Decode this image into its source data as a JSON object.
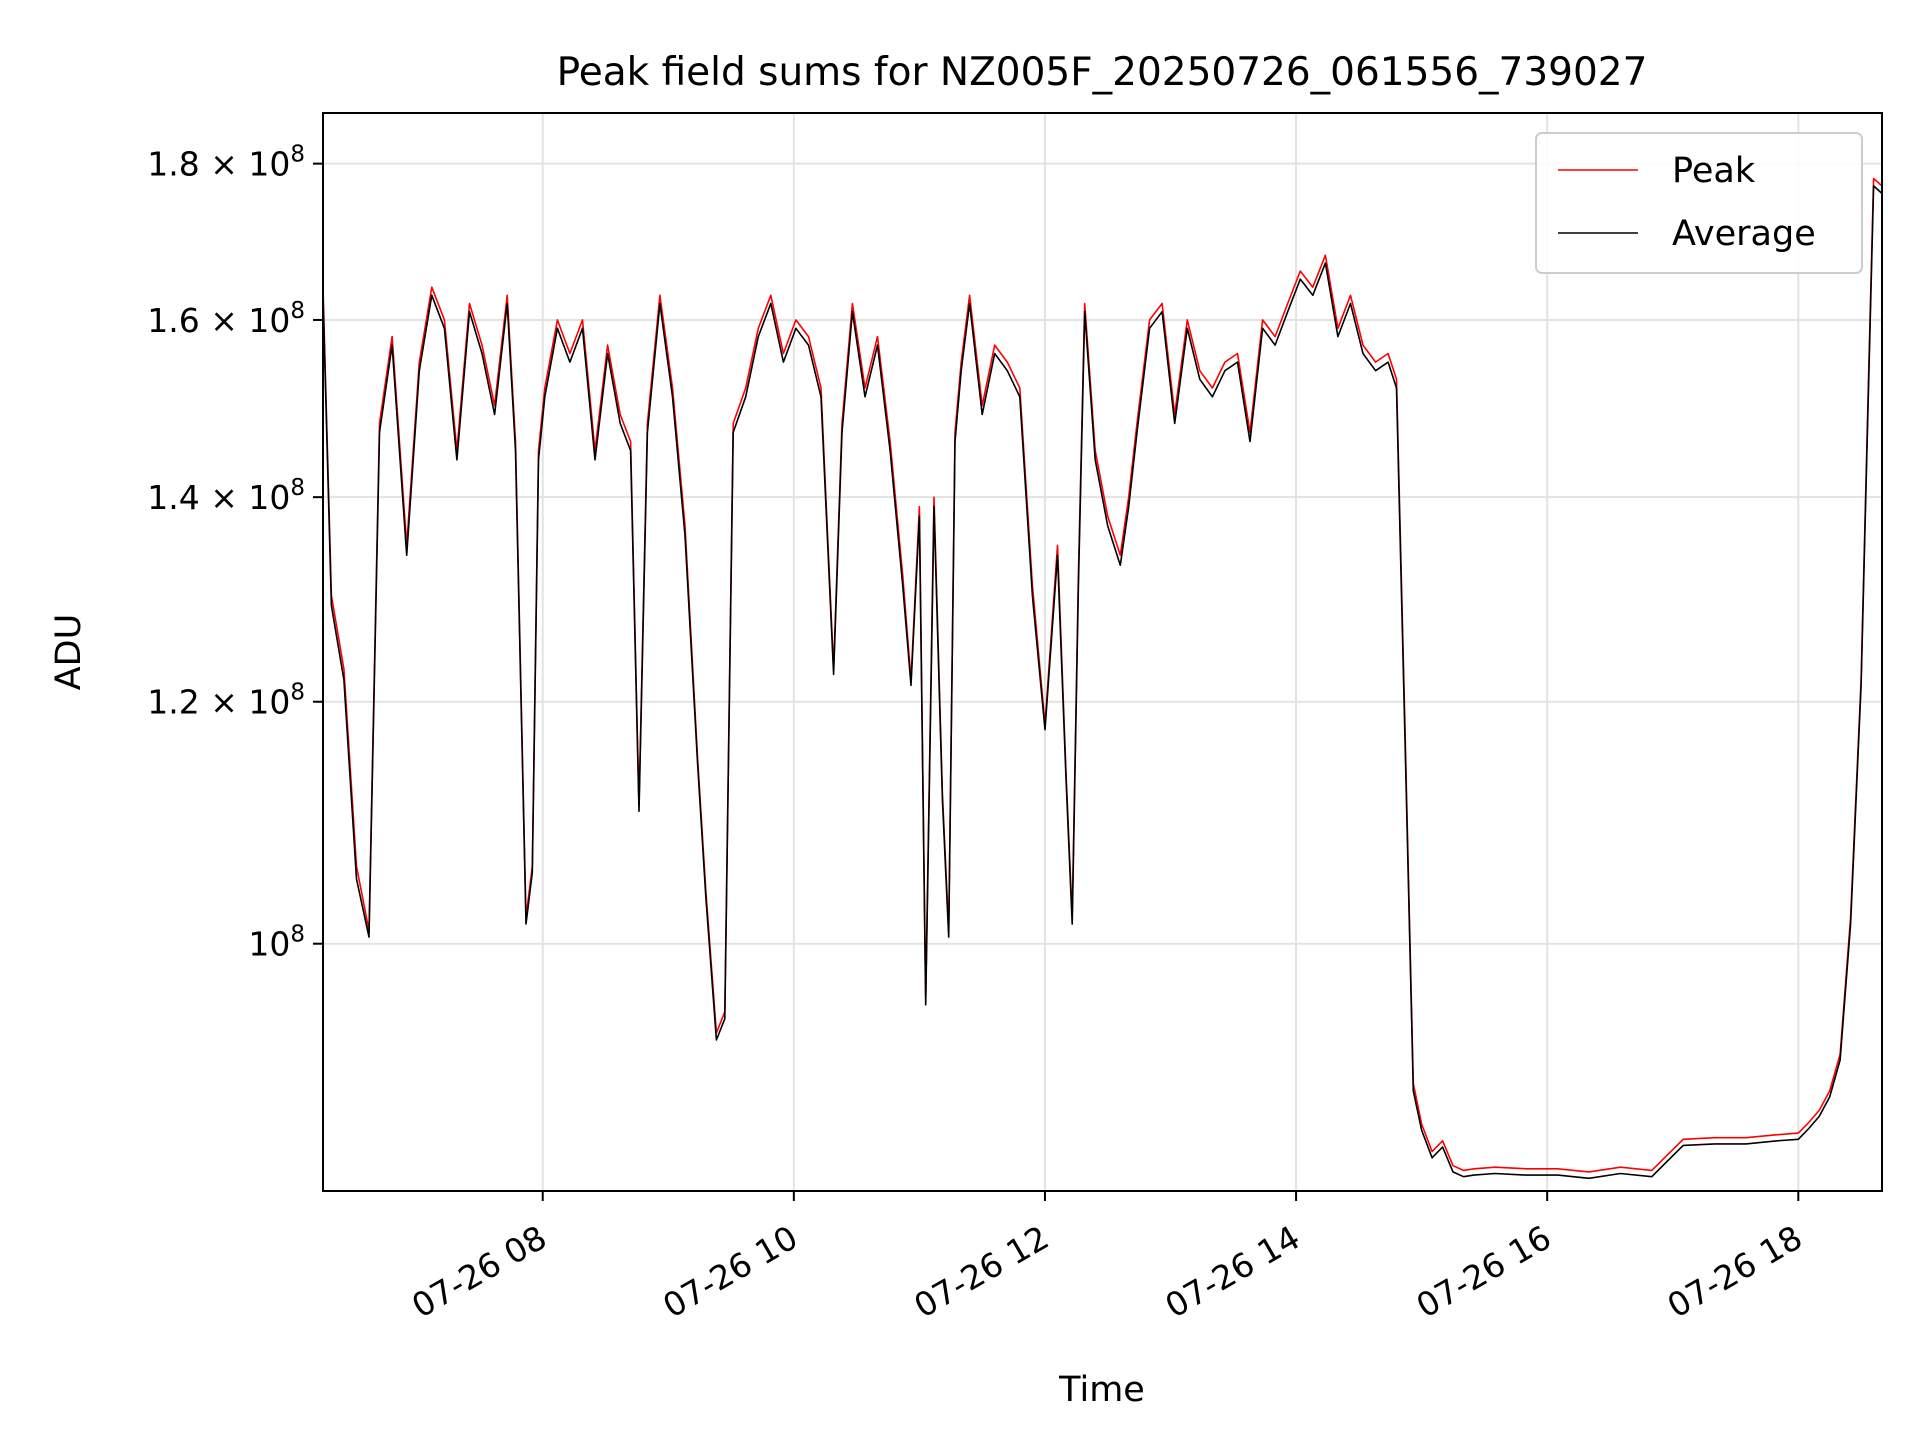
{
  "chart_data": {
    "type": "line",
    "title": "Peak field sums for NZ005F_20250726_061556_739027",
    "xlabel": "Time",
    "ylabel": "ADU",
    "y_scale": "log",
    "grid": true,
    "legend_position": "top-right",
    "x_range": [
      "07-26 06:15",
      "07-26 18:40"
    ],
    "ylim": [
      83000000,
      187000000
    ],
    "x_ticks": [
      {
        "t": "07-26 08:00",
        "label": "07-26 08"
      },
      {
        "t": "07-26 10:00",
        "label": "07-26 10"
      },
      {
        "t": "07-26 12:00",
        "label": "07-26 12"
      },
      {
        "t": "07-26 14:00",
        "label": "07-26 14"
      },
      {
        "t": "07-26 16:00",
        "label": "07-26 16"
      },
      {
        "t": "07-26 18:00",
        "label": "07-26 18"
      }
    ],
    "y_ticks": [
      {
        "value": 100000000,
        "mantissa": "",
        "exponent": "8"
      },
      {
        "value": 120000000,
        "mantissa": "1.2",
        "exponent": "8"
      },
      {
        "value": 140000000,
        "mantissa": "1.4",
        "exponent": "8"
      },
      {
        "value": 160000000,
        "mantissa": "1.6",
        "exponent": "8"
      },
      {
        "value": 180000000,
        "mantissa": "1.8",
        "exponent": "8"
      }
    ],
    "series": [
      {
        "name": "Peak",
        "color": "#ff0000",
        "x": [
          "07-26 06:15",
          "07-26 06:19",
          "07-26 06:25",
          "07-26 06:31",
          "07-26 06:37",
          "07-26 06:42",
          "07-26 06:48",
          "07-26 06:55",
          "07-26 07:01",
          "07-26 07:07",
          "07-26 07:13",
          "07-26 07:19",
          "07-26 07:25",
          "07-26 07:31",
          "07-26 07:37",
          "07-26 07:43",
          "07-26 07:47",
          "07-26 07:52",
          "07-26 07:55",
          "07-26 07:58",
          "07-26 08:01",
          "07-26 08:07",
          "07-26 08:13",
          "07-26 08:19",
          "07-26 08:25",
          "07-26 08:31",
          "07-26 08:37",
          "07-26 08:42",
          "07-26 08:46",
          "07-26 08:50",
          "07-26 08:56",
          "07-26 09:02",
          "07-26 09:08",
          "07-26 09:14",
          "07-26 09:18",
          "07-26 09:23",
          "07-26 09:27",
          "07-26 09:31",
          "07-26 09:37",
          "07-26 09:43",
          "07-26 09:49",
          "07-26 09:55",
          "07-26 10:01",
          "07-26 10:07",
          "07-26 10:13",
          "07-26 10:19",
          "07-26 10:23",
          "07-26 10:28",
          "07-26 10:34",
          "07-26 10:40",
          "07-26 10:46",
          "07-26 10:52",
          "07-26 10:56",
          "07-26 11:00",
          "07-26 11:03",
          "07-26 11:07",
          "07-26 11:11",
          "07-26 11:14",
          "07-26 11:17",
          "07-26 11:20",
          "07-26 11:24",
          "07-26 11:30",
          "07-26 11:36",
          "07-26 11:42",
          "07-26 11:48",
          "07-26 11:54",
          "07-26 12:00",
          "07-26 12:06",
          "07-26 12:10",
          "07-26 12:13",
          "07-26 12:16",
          "07-26 12:19",
          "07-26 12:24",
          "07-26 12:30",
          "07-26 12:36",
          "07-26 12:40",
          "07-26 12:44",
          "07-26 12:50",
          "07-26 12:56",
          "07-26 13:02",
          "07-26 13:08",
          "07-26 13:14",
          "07-26 13:20",
          "07-26 13:26",
          "07-26 13:32",
          "07-26 13:38",
          "07-26 13:44",
          "07-26 13:50",
          "07-26 13:56",
          "07-26 14:02",
          "07-26 14:08",
          "07-26 14:14",
          "07-26 14:20",
          "07-26 14:26",
          "07-26 14:32",
          "07-26 14:38",
          "07-26 14:44",
          "07-26 14:48",
          "07-26 14:52",
          "07-26 14:56",
          "07-26 15:00",
          "07-26 15:05",
          "07-26 15:10",
          "07-26 15:15",
          "07-26 15:20",
          "07-26 15:25",
          "07-26 15:35",
          "07-26 15:50",
          "07-26 16:05",
          "07-26 16:20",
          "07-26 16:35",
          "07-26 16:50",
          "07-26 16:56",
          "07-26 17:05",
          "07-26 17:20",
          "07-26 17:35",
          "07-26 17:50",
          "07-26 18:00",
          "07-26 18:05",
          "07-26 18:10",
          "07-26 18:15",
          "07-26 18:20",
          "07-26 18:25",
          "07-26 18:30",
          "07-26 18:33",
          "07-26 18:36",
          "07-26 18:40"
        ],
        "values": [
          164000000,
          130000000,
          123000000,
          106000000,
          101000000,
          148000000,
          158000000,
          135000000,
          155000000,
          164000000,
          160000000,
          145000000,
          162000000,
          157000000,
          150000000,
          163000000,
          146000000,
          102000000,
          106000000,
          145000000,
          152000000,
          160000000,
          156000000,
          160000000,
          145000000,
          157000000,
          149000000,
          146000000,
          111000000,
          148000000,
          163000000,
          152000000,
          137000000,
          115000000,
          104000000,
          93500000,
          95000000,
          148000000,
          152000000,
          159000000,
          163000000,
          156000000,
          160000000,
          158000000,
          152000000,
          123000000,
          148000000,
          162000000,
          152000000,
          158000000,
          146000000,
          132000000,
          122000000,
          139000000,
          96000000,
          140000000,
          112000000,
          101000000,
          147000000,
          155000000,
          163000000,
          150000000,
          157000000,
          155000000,
          152000000,
          131000000,
          118000000,
          135000000,
          114000000,
          102000000,
          132000000,
          162000000,
          145000000,
          138000000,
          134000000,
          140000000,
          148000000,
          160000000,
          162000000,
          149000000,
          160000000,
          154000000,
          152000000,
          155000000,
          156000000,
          147000000,
          160000000,
          158000000,
          162000000,
          166000000,
          164000000,
          168000000,
          159000000,
          163000000,
          157000000,
          155000000,
          156000000,
          153000000,
          118000000,
          90000000,
          87300000,
          85500000,
          86200000,
          84600000,
          84300000,
          84400000,
          84500000,
          84400000,
          84400000,
          84200000,
          84500000,
          84300000,
          85100000,
          86300000,
          86400000,
          86400000,
          86600000,
          86700000,
          87400000,
          88200000,
          89500000,
          92000000,
          102000000,
          122000000,
          148000000,
          178000000,
          177000000
        ]
      },
      {
        "name": "Average",
        "color": "#000000",
        "x": [
          "07-26 06:15",
          "07-26 06:19",
          "07-26 06:25",
          "07-26 06:31",
          "07-26 06:37",
          "07-26 06:42",
          "07-26 06:48",
          "07-26 06:55",
          "07-26 07:01",
          "07-26 07:07",
          "07-26 07:13",
          "07-26 07:19",
          "07-26 07:25",
          "07-26 07:31",
          "07-26 07:37",
          "07-26 07:43",
          "07-26 07:47",
          "07-26 07:52",
          "07-26 07:55",
          "07-26 07:58",
          "07-26 08:01",
          "07-26 08:07",
          "07-26 08:13",
          "07-26 08:19",
          "07-26 08:25",
          "07-26 08:31",
          "07-26 08:37",
          "07-26 08:42",
          "07-26 08:46",
          "07-26 08:50",
          "07-26 08:56",
          "07-26 09:02",
          "07-26 09:08",
          "07-26 09:14",
          "07-26 09:18",
          "07-26 09:23",
          "07-26 09:27",
          "07-26 09:31",
          "07-26 09:37",
          "07-26 09:43",
          "07-26 09:49",
          "07-26 09:55",
          "07-26 10:01",
          "07-26 10:07",
          "07-26 10:13",
          "07-26 10:19",
          "07-26 10:23",
          "07-26 10:28",
          "07-26 10:34",
          "07-26 10:40",
          "07-26 10:46",
          "07-26 10:52",
          "07-26 10:56",
          "07-26 11:00",
          "07-26 11:03",
          "07-26 11:07",
          "07-26 11:11",
          "07-26 11:14",
          "07-26 11:17",
          "07-26 11:20",
          "07-26 11:24",
          "07-26 11:30",
          "07-26 11:36",
          "07-26 11:42",
          "07-26 11:48",
          "07-26 11:54",
          "07-26 12:00",
          "07-26 12:06",
          "07-26 12:10",
          "07-26 12:13",
          "07-26 12:16",
          "07-26 12:19",
          "07-26 12:24",
          "07-26 12:30",
          "07-26 12:36",
          "07-26 12:40",
          "07-26 12:44",
          "07-26 12:50",
          "07-26 12:56",
          "07-26 13:02",
          "07-26 13:08",
          "07-26 13:14",
          "07-26 13:20",
          "07-26 13:26",
          "07-26 13:32",
          "07-26 13:38",
          "07-26 13:44",
          "07-26 13:50",
          "07-26 13:56",
          "07-26 14:02",
          "07-26 14:08",
          "07-26 14:14",
          "07-26 14:20",
          "07-26 14:26",
          "07-26 14:32",
          "07-26 14:38",
          "07-26 14:44",
          "07-26 14:48",
          "07-26 14:52",
          "07-26 14:56",
          "07-26 15:00",
          "07-26 15:05",
          "07-26 15:10",
          "07-26 15:15",
          "07-26 15:20",
          "07-26 15:25",
          "07-26 15:35",
          "07-26 15:50",
          "07-26 16:05",
          "07-26 16:20",
          "07-26 16:35",
          "07-26 16:50",
          "07-26 16:56",
          "07-26 17:05",
          "07-26 17:20",
          "07-26 17:35",
          "07-26 17:50",
          "07-26 18:00",
          "07-26 18:05",
          "07-26 18:10",
          "07-26 18:15",
          "07-26 18:20",
          "07-26 18:25",
          "07-26 18:30",
          "07-26 18:33",
          "07-26 18:36",
          "07-26 18:40"
        ],
        "values": [
          163000000,
          129000000,
          122000000,
          105000000,
          100500000,
          147000000,
          157000000,
          134000000,
          154000000,
          163000000,
          159000000,
          144000000,
          161000000,
          156000000,
          149000000,
          162000000,
          145000000,
          101500000,
          105500000,
          144000000,
          151000000,
          159000000,
          155000000,
          159000000,
          144000000,
          156000000,
          148000000,
          145000000,
          110500000,
          147000000,
          162000000,
          151000000,
          136000000,
          114500000,
          103500000,
          93000000,
          94500000,
          147000000,
          151000000,
          158000000,
          162000000,
          155000000,
          159000000,
          157000000,
          151000000,
          122500000,
          147000000,
          161000000,
          151000000,
          157000000,
          145000000,
          131000000,
          121500000,
          138000000,
          95500000,
          139000000,
          111500000,
          100500000,
          146000000,
          154000000,
          162000000,
          149000000,
          156000000,
          154000000,
          151000000,
          130000000,
          117500000,
          134000000,
          113500000,
          101500000,
          131000000,
          161000000,
          144000000,
          137000000,
          133000000,
          139000000,
          147000000,
          159000000,
          161000000,
          148000000,
          159000000,
          153000000,
          151000000,
          154000000,
          155000000,
          146000000,
          159000000,
          157000000,
          161000000,
          165000000,
          163000000,
          167000000,
          158000000,
          162000000,
          156000000,
          154000000,
          155000000,
          152000000,
          117000000,
          89500000,
          86900000,
          85100000,
          85800000,
          84200000,
          83900000,
          84000000,
          84100000,
          84000000,
          84000000,
          83800000,
          84100000,
          83900000,
          84700000,
          85900000,
          86000000,
          86000000,
          86200000,
          86300000,
          87000000,
          87800000,
          89100000,
          91600000,
          101500000,
          121500000,
          147000000,
          177000000,
          176000000
        ]
      }
    ]
  }
}
